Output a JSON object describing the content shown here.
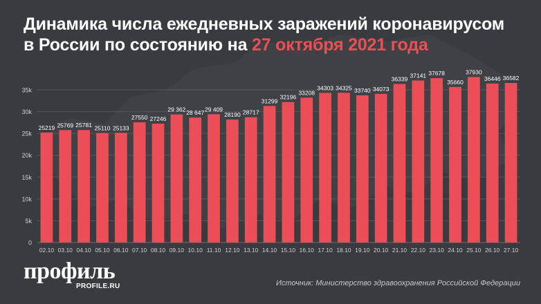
{
  "header": {
    "title_part1": "Динамика числа ежедневных заражений коронавирусом",
    "title_part2": "в России по состоянию на ",
    "title_date": "27 октября 2021 года"
  },
  "logo": {
    "main": "профиль",
    "sub": "PROFILE.RU"
  },
  "source": "Источник: Министерство здравоохранения Российской Федерации",
  "colors": {
    "background": "#3a3b3f",
    "bar": "#ec4e57",
    "accent": "#ec4e57",
    "grid": "#55565b",
    "text": "#ffffff"
  },
  "chart_data": {
    "type": "bar",
    "title": "Динамика числа ежедневных заражений коронавирусом в России по состоянию на 27 октября 2021 года",
    "xlabel": "",
    "ylabel": "",
    "ylim": [
      0,
      35000
    ],
    "yticks": [
      0,
      5000,
      10000,
      15000,
      20000,
      25000,
      30000,
      35000
    ],
    "ytick_labels": [
      "0",
      "5k",
      "10k",
      "15k",
      "20k",
      "25k",
      "30k",
      "35k"
    ],
    "grid": true,
    "categories": [
      "02.10",
      "03.10",
      "04.10",
      "05.10",
      "06.10",
      "07.10",
      "08.10",
      "09.10",
      "10.10",
      "11.10",
      "12.10",
      "13.10",
      "14.10",
      "15.10",
      "16.10",
      "17.10",
      "18.10",
      "19.10",
      "20.10",
      "21.10",
      "22.10",
      "23.10",
      "24.10",
      "25.10",
      "26.10",
      "27.10"
    ],
    "values": [
      25219,
      25769,
      25781,
      25110,
      25133,
      27550,
      27246,
      29362,
      28647,
      29409,
      28190,
      28717,
      31299,
      32196,
      33208,
      34303,
      34325,
      33740,
      34073,
      36339,
      37141,
      37678,
      35660,
      37930,
      36446,
      36582
    ],
    "value_labels": [
      "25219",
      "25769",
      "25781",
      "25110",
      "25133",
      "27550",
      "27246",
      "29 362",
      "28 647",
      "29 409",
      "28190",
      "28717",
      "31299",
      "32196",
      "33208",
      "34303",
      "34325",
      "33740",
      "34073",
      "36339",
      "37141",
      "37678",
      "35660",
      "37930",
      "36446",
      "36582"
    ]
  }
}
